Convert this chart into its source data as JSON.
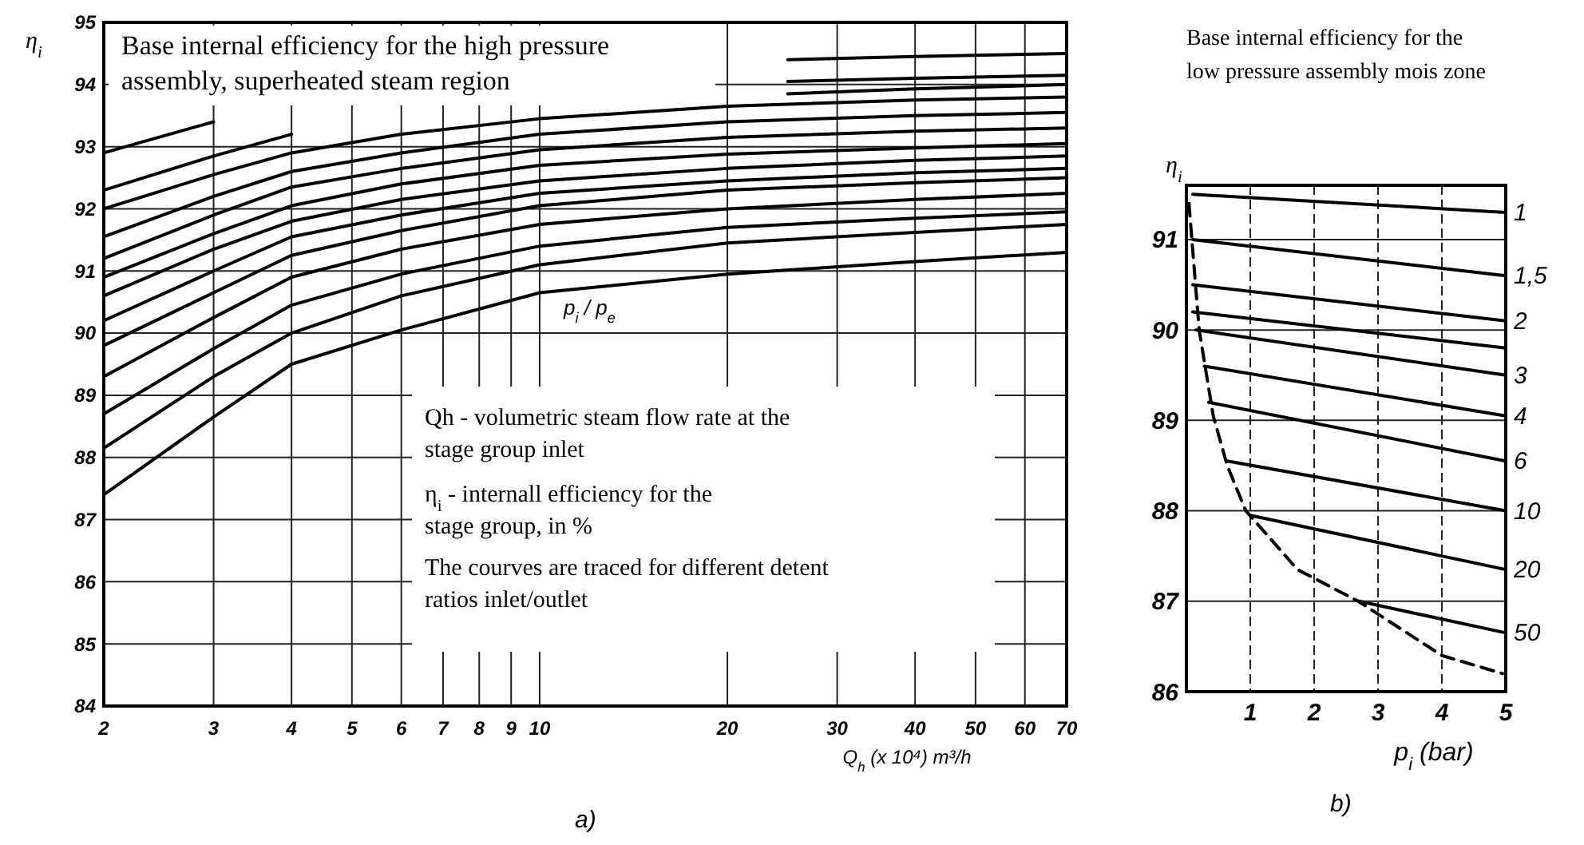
{
  "chart_data": [
    {
      "type": "line",
      "title": "Base internal efficiency for the high pressure assembly, superheated steam region",
      "xlabel": "Q$_{h}$ (x 10⁴) m³/h",
      "ylabel": "η$_{i}$",
      "log": "x",
      "grid": true,
      "xlim": [
        2,
        70
      ],
      "ylim": [
        84,
        95
      ],
      "xticks": [
        2,
        3,
        4,
        5,
        6,
        7,
        8,
        9,
        10,
        20,
        30,
        40,
        50,
        60,
        70
      ],
      "yticks": [
        84,
        85,
        86,
        87,
        88,
        89,
        90,
        91,
        92,
        93,
        94,
        95
      ],
      "annotations": [
        "p$_{i}$ / p$_{e}$",
        "Qh - volumetric steam flow rate at the stage group inlet",
        "η$_{i}$ - internall efficiency for the stage group, in %",
        "The courves are traced for different detent ratios inlet/outlet",
        "a)"
      ],
      "series": [
        {
          "color": "#000000",
          "x": [
            2,
            3,
            4,
            6,
            10,
            20,
            40,
            70
          ],
          "values": [
            87.4,
            88.65,
            89.5,
            90.05,
            90.65,
            90.95,
            91.15,
            91.3
          ]
        },
        {
          "color": "#000000",
          "x": [
            2,
            3,
            4,
            6,
            10,
            20,
            40,
            70
          ],
          "values": [
            88.15,
            89.3,
            90.0,
            90.6,
            91.1,
            91.45,
            91.62,
            91.75
          ]
        },
        {
          "color": "#000000",
          "x": [
            2,
            3,
            4,
            6,
            10,
            20,
            40,
            70
          ],
          "values": [
            88.7,
            89.75,
            90.45,
            90.95,
            91.4,
            91.7,
            91.85,
            91.95
          ]
        },
        {
          "color": "#000000",
          "x": [
            2,
            3,
            4,
            6,
            10,
            20,
            40,
            70
          ],
          "values": [
            89.3,
            90.25,
            90.9,
            91.35,
            91.75,
            92.0,
            92.15,
            92.25
          ]
        },
        {
          "color": "#000000",
          "x": [
            2,
            3,
            4,
            6,
            10,
            20,
            40,
            70
          ],
          "values": [
            89.8,
            90.65,
            91.25,
            91.65,
            92.05,
            92.3,
            92.42,
            92.5
          ]
        },
        {
          "color": "#000000",
          "x": [
            2,
            3,
            4,
            6,
            10,
            20,
            40,
            70
          ],
          "values": [
            90.2,
            91.0,
            91.55,
            91.9,
            92.25,
            92.45,
            92.58,
            92.65
          ]
        },
        {
          "color": "#000000",
          "x": [
            2,
            3,
            4,
            6,
            10,
            20,
            40,
            70
          ],
          "values": [
            90.6,
            91.35,
            91.8,
            92.15,
            92.45,
            92.65,
            92.78,
            92.85
          ]
        },
        {
          "color": "#000000",
          "x": [
            2,
            3,
            4,
            6,
            10,
            20,
            40,
            70
          ],
          "values": [
            90.9,
            91.6,
            92.05,
            92.4,
            92.7,
            92.88,
            92.98,
            93.05
          ]
        },
        {
          "color": "#000000",
          "x": [
            2,
            3,
            4,
            6,
            10,
            20,
            40,
            70
          ],
          "values": [
            91.2,
            91.9,
            92.35,
            92.65,
            92.95,
            93.15,
            93.25,
            93.3
          ]
        },
        {
          "color": "#000000",
          "x": [
            2,
            3,
            4,
            6,
            10,
            20,
            40,
            70
          ],
          "values": [
            91.55,
            92.2,
            92.6,
            92.9,
            93.2,
            93.4,
            93.5,
            93.55
          ]
        },
        {
          "color": "#000000",
          "x": [
            2,
            3,
            4,
            6,
            10,
            20,
            40,
            70
          ],
          "values": [
            92.0,
            92.55,
            92.9,
            93.2,
            93.45,
            93.65,
            93.75,
            93.8
          ]
        },
        {
          "color": "#000000",
          "x": [
            2,
            3,
            4,
            5,
            25,
            40,
            70
          ],
          "values": [
            92.3,
            92.85,
            93.2,
            null,
            93.85,
            93.93,
            94.0
          ]
        },
        {
          "color": "#000000",
          "x": [
            2,
            3,
            4,
            25,
            40,
            70
          ],
          "values": [
            92.9,
            93.4,
            null,
            94.05,
            94.1,
            94.15
          ]
        },
        {
          "color": "#000000",
          "x": [
            25,
            40,
            70
          ],
          "values": [
            94.4,
            94.45,
            94.5
          ]
        }
      ]
    },
    {
      "type": "line",
      "title": "Base internal efficiency for the low pressure assembly mois zone",
      "xlabel": "p$_{i}$ (bar)",
      "ylabel": "η$_{i}$",
      "grid": true,
      "xlim": [
        0,
        5
      ],
      "ylim": [
        86,
        91.6
      ],
      "xticks": [
        1,
        2,
        3,
        4,
        5
      ],
      "yticks": [
        86,
        87,
        88,
        89,
        90,
        91
      ],
      "annotations": [
        "b)"
      ],
      "series": [
        {
          "name": "1",
          "color": "#000000",
          "x": [
            0.1,
            5
          ],
          "values": [
            91.5,
            91.3
          ]
        },
        {
          "name": "1,5",
          "color": "#000000",
          "x": [
            0.1,
            5
          ],
          "values": [
            91.0,
            90.6
          ]
        },
        {
          "name": "2",
          "color": "#000000",
          "x": [
            0.1,
            5
          ],
          "values": [
            90.5,
            90.1
          ]
        },
        {
          "color": "#000000",
          "x": [
            0.1,
            5
          ],
          "values": [
            90.2,
            89.8
          ]
        },
        {
          "name": "3",
          "color": "#000000",
          "x": [
            0.15,
            5
          ],
          "values": [
            90.0,
            89.5
          ]
        },
        {
          "name": "4",
          "color": "#000000",
          "x": [
            0.28,
            5
          ],
          "values": [
            89.6,
            89.05
          ]
        },
        {
          "name": "6",
          "color": "#000000",
          "x": [
            0.35,
            5
          ],
          "values": [
            89.2,
            88.55
          ]
        },
        {
          "name": "10",
          "color": "#000000",
          "x": [
            0.64,
            5
          ],
          "values": [
            88.55,
            88.0
          ]
        },
        {
          "name": "20",
          "color": "#000000",
          "x": [
            1.0,
            5
          ],
          "values": [
            87.95,
            87.35
          ]
        },
        {
          "name": "50",
          "color": "#000000",
          "x": [
            2.7,
            5
          ],
          "values": [
            87.0,
            86.65
          ]
        },
        {
          "color": "#000000",
          "line_style": "dashed",
          "x": [
            0.04,
            0.2,
            0.42,
            0.64,
            0.93,
            1.74,
            2.69,
            4.0,
            4.95
          ],
          "values": [
            91.4,
            90.0,
            89.05,
            88.5,
            88.0,
            87.35,
            87.0,
            86.4,
            86.2
          ]
        }
      ]
    }
  ]
}
